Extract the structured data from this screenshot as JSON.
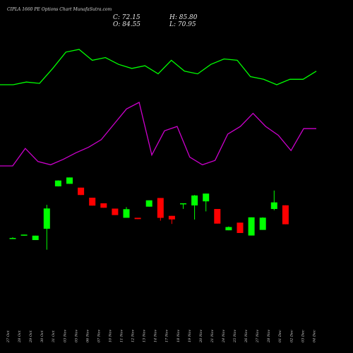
{
  "header": {
    "title": "CIPLA 1660  PE Options  Chart MunafaSutra.com",
    "close": "C: 72.15",
    "open": "O: 84.55",
    "high": "H: 85.80",
    "low": "L: 70.95"
  },
  "colors": {
    "background": "#000000",
    "green_line": "#00ff00",
    "magenta_line": "#cc00cc",
    "up_candle": "#00ff00",
    "down_candle": "#ff0000"
  },
  "chart_data": {
    "type": "candlestick",
    "x": [
      "27 Oct",
      "28 Oct",
      "29 Oct",
      "30 Oct",
      "31 Oct",
      "03 Nov",
      "05 Nov",
      "06 Nov",
      "07 Nov",
      "10 Nov",
      "11 Nov",
      "12 Nov",
      "13 Nov",
      "14 Nov",
      "17 Nov",
      "18 Nov",
      "19 Nov",
      "20 Nov",
      "21 Nov",
      "24 Nov",
      "25 Nov",
      "26 Nov",
      "27 Nov",
      "28 Nov",
      "01 Dec",
      "02 Dec",
      "03 Dec",
      "04 Dec"
    ],
    "x_labels_shown": [
      "27 Oct",
      "28 Oct",
      "29 Oct",
      "30 Oct",
      "31 Oct",
      "03 Nov",
      "05 Nov",
      "06 Nov",
      "07 Nov",
      "10 Nov",
      "11 Nov",
      "12 Nov",
      "13 Nov",
      "14 Nov",
      "17 Nov",
      "18 Nov",
      "19 Nov",
      "20 Nov",
      "21 Nov",
      "24 Nov",
      "25 Nov",
      "26 Nov",
      "27 Nov",
      "28 Nov",
      "01 Dec",
      "02 Dec",
      "03 Dec",
      "04 Dec"
    ],
    "candles": [
      {
        "o": 155.0,
        "h": 156.1,
        "l": 153.7,
        "c": 155.0
      },
      {
        "o": 159.2,
        "h": 160.2,
        "l": 158.5,
        "c": 160.2
      },
      {
        "o": 151.8,
        "h": 158.6,
        "l": 151.8,
        "c": 158.6
      },
      {
        "o": 169.3,
        "h": 206.2,
        "l": 136.9,
        "c": 200.6
      },
      {
        "o": 234.8,
        "h": 244.1,
        "l": 234.6,
        "c": 243.8
      },
      {
        "o": 238.7,
        "h": 248.5,
        "l": 238.7,
        "c": 248.5
      },
      {
        "o": 232.8,
        "h": 232.8,
        "l": 221.4,
        "c": 221.4
      },
      {
        "o": 217.2,
        "h": 217.2,
        "l": 205.0,
        "c": 205.0
      },
      {
        "o": 208.6,
        "h": 208.6,
        "l": 201.7,
        "c": 201.7
      },
      {
        "o": 200.4,
        "h": 200.4,
        "l": 190.4,
        "c": 190.4
      },
      {
        "o": 186.2,
        "h": 202.7,
        "l": 186.2,
        "c": 199.5
      },
      {
        "o": 186.2,
        "h": 186.2,
        "l": 184.2,
        "c": 184.2
      },
      {
        "o": 203.4,
        "h": 213.2,
        "l": 203.4,
        "c": 213.2
      },
      {
        "o": 216.8,
        "h": 216.8,
        "l": 181.7,
        "c": 186.1
      },
      {
        "o": 189.2,
        "h": 189.2,
        "l": 176.7,
        "c": 183.7
      },
      {
        "o": 208.6,
        "h": 208.6,
        "l": 200.0,
        "c": 208.6
      },
      {
        "o": 205.3,
        "h": 221.4,
        "l": 183.5,
        "c": 220.7
      },
      {
        "o": 211.6,
        "h": 223.6,
        "l": 196.1,
        "c": 223.6
      },
      {
        "o": 199.8,
        "h": 199.8,
        "l": 177.2,
        "c": 177.2
      },
      {
        "o": 166.9,
        "h": 172.8,
        "l": 166.9,
        "c": 171.9
      },
      {
        "o": 178.7,
        "h": 178.7,
        "l": 162.7,
        "c": 162.7
      },
      {
        "o": 158.8,
        "h": 186.9,
        "l": 158.8,
        "c": 186.9
      },
      {
        "o": 167.5,
        "h": 186.9,
        "l": 167.5,
        "c": 186.4
      },
      {
        "o": 199.8,
        "h": 228.3,
        "l": 197.8,
        "c": 210.0
      },
      {
        "o": 205.5,
        "h": 205.5,
        "l": 176.2,
        "c": 176.2
      }
    ],
    "candle_x_index": [
      0,
      1,
      2,
      3,
      4,
      5,
      6,
      7,
      8,
      9,
      10,
      11,
      12,
      13,
      14,
      15,
      16,
      17,
      18,
      19,
      20,
      21,
      22,
      23,
      24
    ],
    "green_line": [
      88,
      88,
      90,
      89,
      100,
      112,
      114,
      106,
      108,
      103,
      100,
      102,
      96,
      106,
      98,
      96,
      103,
      107,
      106,
      94,
      92,
      88,
      92,
      92,
      98
    ],
    "magenta_line": [
      48,
      48,
      64,
      52,
      49,
      54,
      60,
      65,
      72,
      86,
      100,
      106,
      58,
      80,
      84,
      56,
      49,
      53,
      77,
      84,
      96,
      84,
      76,
      62,
      82,
      82
    ]
  }
}
